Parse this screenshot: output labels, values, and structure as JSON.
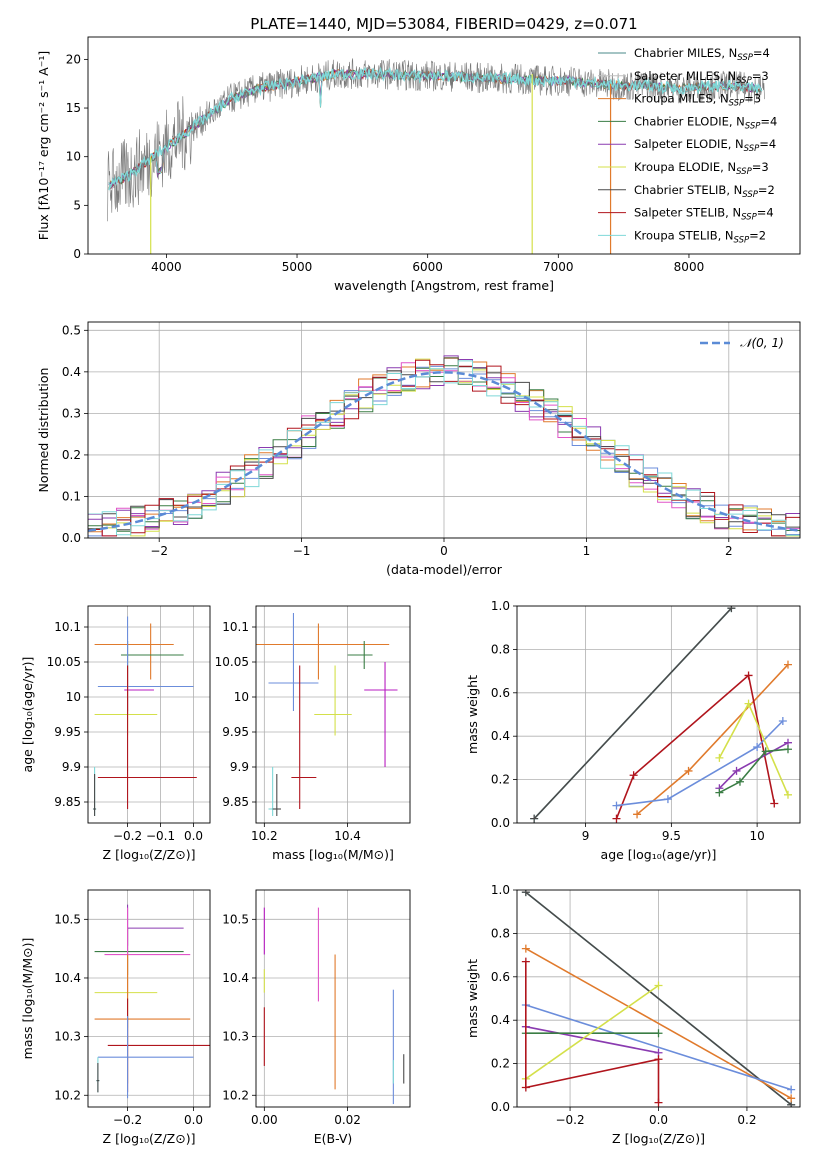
{
  "colors": [
    "#6b8ddb",
    "#8a3bb0",
    "#e07a2c",
    "#3a7d44",
    "#b71cc0",
    "#d4c21a",
    "#4a4a4a",
    "#b0151d",
    "#7fd8d8"
  ],
  "chart_data": [
    {
      "id": "spectrum",
      "type": "line",
      "title": "PLATE=1440, MJD=53084, FIBERID=0429, z=0.071",
      "xlabel": "wavelength [Angstrom, rest frame]",
      "ylabel": "Flux [fλ10⁻¹⁷ erg cm⁻² s⁻¹ A⁻¹]",
      "xlim": [
        3400,
        8850
      ],
      "ylim": [
        0,
        22.3
      ],
      "xticks": [
        4000,
        5000,
        6000,
        7000,
        8000
      ],
      "yticks": [
        0,
        5,
        10,
        15,
        20
      ],
      "legend": [
        "Chabrier MILES, N_SSP=4",
        "Salpeter MILES, N_SSP=3",
        "Kroupa MILES, N_SSP=3",
        "Chabrier ELODIE, N_SSP=4",
        "Salpeter ELODIE, N_SSP=4",
        "Kroupa ELODIE, N_SSP=3",
        "Chabrier STELIB, N_SSP=2",
        "Salpeter STELIB, N_SSP=4",
        "Kroupa STELIB, N_SSP=2"
      ],
      "legend_colors": [
        "#4a8a8a",
        "#c0c0c0",
        "#e07a2c",
        "#3a7d44",
        "#8a3bb0",
        "#d4e04a",
        "#4a4a4a",
        "#b0151d",
        "#7fd8d8"
      ],
      "continuum": {
        "x": [
          3550,
          3700,
          3850,
          4000,
          4150,
          4300,
          4500,
          4700,
          4900,
          5100,
          5300,
          5500,
          5700,
          5900,
          6100,
          6300,
          6500,
          6700,
          6900,
          7100,
          7300,
          7500,
          7700,
          7900,
          8100,
          8300,
          8500,
          8600
        ],
        "y": [
          7,
          8,
          9.5,
          11,
          12.5,
          14,
          16,
          17,
          17.5,
          18,
          18.5,
          18.5,
          18.5,
          18.3,
          18.3,
          18.2,
          18,
          18,
          17.8,
          17.8,
          17.5,
          17.3,
          17.3,
          17,
          17.2,
          17.3,
          17,
          16.8
        ]
      }
    },
    {
      "id": "residuals",
      "type": "histogram",
      "xlabel": "(data-model)/error",
      "ylabel": "Normed distribution",
      "xlim": [
        -2.5,
        2.5
      ],
      "ylim": [
        0,
        0.52
      ],
      "xticks": [
        -2,
        -1,
        0,
        1,
        2
      ],
      "yticks": [
        0,
        0.1,
        0.2,
        0.3,
        0.4,
        0.5
      ],
      "legend": "𝒩(0, 1)",
      "legend_color": "#5b8bd6"
    },
    {
      "id": "age_vs_Z",
      "type": "scatter",
      "xlabel": "Z [log₁₀(Z/Z⊙)]",
      "ylabel": "age  [log₁₀(age/yr)]",
      "xlim": [
        -0.32,
        0.05
      ],
      "ylim": [
        9.82,
        10.13
      ],
      "xticks": [
        -0.2,
        -0.1,
        0.0
      ],
      "yticks": [
        9.85,
        9.9,
        9.95,
        10.0,
        10.05,
        10.1
      ],
      "xticklabels": [
        "−0.2",
        "−0.1",
        "0.0"
      ],
      "points": [
        {
          "x": -0.13,
          "y": 10.075,
          "xerr": [
            0.17,
            0.07
          ],
          "yerr": [
            0.05,
            0.03
          ],
          "c": "#e07a2c"
        },
        {
          "x": -0.2,
          "y": 10.06,
          "xerr": [
            0.02,
            0.17
          ],
          "yerr": [
            0.02,
            0.02
          ],
          "c": "#3a7d44"
        },
        {
          "x": -0.2,
          "y": 10.015,
          "xerr": [
            0.09,
            0.2
          ],
          "yerr": [
            0.04,
            0.1
          ],
          "c": "#6b8ddb"
        },
        {
          "x": -0.2,
          "y": 10.01,
          "xerr": [
            0.01,
            0.08
          ],
          "yerr": [
            0.03,
            0.03
          ],
          "c": "#b71cc0"
        },
        {
          "x": -0.2,
          "y": 9.975,
          "xerr": [
            0.1,
            0.09
          ],
          "yerr": [
            0.03,
            0.07
          ],
          "c": "#d4e04a"
        },
        {
          "x": -0.2,
          "y": 9.885,
          "xerr": [
            0.09,
            0.21
          ],
          "yerr": [
            0.045,
            0.16
          ],
          "c": "#b0151d"
        },
        {
          "x": -0.3,
          "y": 9.84,
          "xerr": [
            0.005,
            0.005
          ],
          "yerr": [
            0.01,
            0.06
          ],
          "c": "#7fd8d8"
        },
        {
          "x": -0.3,
          "y": 9.84,
          "xerr": [
            0.004,
            0.004
          ],
          "yerr": [
            0.01,
            0.05
          ],
          "c": "#4a4a4a"
        }
      ]
    },
    {
      "id": "age_vs_mass",
      "type": "scatter",
      "xlabel": "mass [log₁₀(M/M⊙)]",
      "xlim": [
        10.18,
        10.55
      ],
      "ylim": [
        9.82,
        10.13
      ],
      "xticks": [
        10.2,
        10.4
      ],
      "yticks": [
        9.85,
        9.9,
        9.95,
        10.0,
        10.05,
        10.1
      ],
      "points": [
        {
          "x": 10.33,
          "y": 10.075,
          "xerr": [
            0.15,
            0.17
          ],
          "yerr": [
            0.05,
            0.03
          ],
          "c": "#e07a2c"
        },
        {
          "x": 10.44,
          "y": 10.06,
          "xerr": [
            0.04,
            0.02
          ],
          "yerr": [
            0.02,
            0.02
          ],
          "c": "#3a7d44"
        },
        {
          "x": 10.27,
          "y": 10.02,
          "xerr": [
            0.06,
            0.06
          ],
          "yerr": [
            0.04,
            0.1
          ],
          "c": "#6b8ddb"
        },
        {
          "x": 10.49,
          "y": 10.01,
          "xerr": [
            0.05,
            0.03
          ],
          "yerr": [
            0.11,
            0.04
          ],
          "c": "#b71cc0"
        },
        {
          "x": 10.37,
          "y": 9.975,
          "xerr": [
            0.05,
            0.04
          ],
          "yerr": [
            0.03,
            0.07
          ],
          "c": "#d4e04a"
        },
        {
          "x": 10.285,
          "y": 9.885,
          "xerr": [
            0.02,
            0.04
          ],
          "yerr": [
            0.045,
            0.16
          ],
          "c": "#b0151d"
        },
        {
          "x": 10.22,
          "y": 9.84,
          "xerr": [
            0.01,
            0.01
          ],
          "yerr": [
            0.01,
            0.06
          ],
          "c": "#7fd8d8"
        },
        {
          "x": 10.23,
          "y": 9.84,
          "xerr": [
            0.01,
            0.01
          ],
          "yerr": [
            0.01,
            0.05
          ],
          "c": "#4a4a4a"
        }
      ]
    },
    {
      "id": "weight_vs_age",
      "type": "line",
      "xlabel": "age  [log₁₀(age/yr)]",
      "ylabel": "mass weight",
      "xlim": [
        8.6,
        10.25
      ],
      "ylim": [
        0,
        1.0
      ],
      "xticks": [
        9.0,
        9.5,
        10.0
      ],
      "yticks": [
        0.0,
        0.2,
        0.4,
        0.6,
        0.8,
        1.0
      ],
      "series": [
        {
          "c": "#7fd8d8",
          "pts": [
            [
              8.7,
              0.02
            ],
            [
              9.85,
              0.99
            ]
          ]
        },
        {
          "c": "#4a4a4a",
          "pts": [
            [
              8.7,
              0.02
            ],
            [
              9.85,
              0.99
            ]
          ]
        },
        {
          "c": "#e07a2c",
          "pts": [
            [
              9.3,
              0.04
            ],
            [
              9.6,
              0.24
            ],
            [
              10.18,
              0.73
            ]
          ]
        },
        {
          "c": "#b0151d",
          "pts": [
            [
              9.18,
              0.02
            ],
            [
              9.28,
              0.22
            ],
            [
              9.95,
              0.68
            ],
            [
              10.1,
              0.09
            ]
          ]
        },
        {
          "c": "#6b8ddb",
          "pts": [
            [
              9.18,
              0.08
            ],
            [
              9.48,
              0.11
            ],
            [
              10.0,
              0.35
            ],
            [
              10.15,
              0.47
            ]
          ]
        },
        {
          "c": "#d4e04a",
          "pts": [
            [
              9.78,
              0.3
            ],
            [
              9.95,
              0.55
            ],
            [
              10.18,
              0.13
            ]
          ]
        },
        {
          "c": "#8a3bb0",
          "pts": [
            [
              9.78,
              0.16
            ],
            [
              9.88,
              0.24
            ],
            [
              10.18,
              0.37
            ]
          ]
        },
        {
          "c": "#3a7d44",
          "pts": [
            [
              9.78,
              0.14
            ],
            [
              9.9,
              0.19
            ],
            [
              10.05,
              0.33
            ],
            [
              10.18,
              0.34
            ]
          ]
        }
      ]
    },
    {
      "id": "mass_vs_Z",
      "type": "scatter",
      "xlabel": "Z [log₁₀(Z/Z⊙)]",
      "ylabel": "mass [log₁₀(M/M⊙)]",
      "xlim": [
        -0.32,
        0.05
      ],
      "ylim": [
        10.18,
        10.55
      ],
      "xticks": [
        -0.2,
        0.0
      ],
      "yticks": [
        10.2,
        10.3,
        10.4,
        10.5
      ],
      "xticklabels": [
        "−0.2",
        "0.0"
      ],
      "points": [
        {
          "x": -0.2,
          "y": 10.485,
          "xerr": [
            0.0,
            0.17
          ],
          "yerr": [
            0.03,
            0.04
          ],
          "c": "#8a3bb0"
        },
        {
          "x": -0.2,
          "y": 10.445,
          "xerr": [
            0.1,
            0.17
          ],
          "yerr": [
            0.04,
            0.04
          ],
          "c": "#3a7d44"
        },
        {
          "x": -0.2,
          "y": 10.44,
          "xerr": [
            0.07,
            0.19
          ],
          "yerr": [
            0.07,
            0.08
          ],
          "c": "#e055c8"
        },
        {
          "x": -0.2,
          "y": 10.375,
          "xerr": [
            0.1,
            0.09
          ],
          "yerr": [
            0.06,
            0.06
          ],
          "c": "#d4e04a"
        },
        {
          "x": -0.2,
          "y": 10.33,
          "xerr": [
            0.1,
            0.19
          ],
          "yerr": [
            0.11,
            0.11
          ],
          "c": "#e07a2c"
        },
        {
          "x": -0.2,
          "y": 10.285,
          "xerr": [
            0.06,
            0.27
          ],
          "yerr": [
            0.08,
            0.08
          ],
          "c": "#b0151d"
        },
        {
          "x": -0.2,
          "y": 10.265,
          "xerr": [
            0.09,
            0.2
          ],
          "yerr": [
            0.07,
            0.07
          ],
          "c": "#6b8ddb"
        },
        {
          "x": -0.29,
          "y": 10.225,
          "xerr": [
            0.005,
            0.005
          ],
          "yerr": [
            0.02,
            0.04
          ],
          "c": "#7fd8d8"
        },
        {
          "x": -0.29,
          "y": 10.225,
          "xerr": [
            0.004,
            0.004
          ],
          "yerr": [
            0.02,
            0.03
          ],
          "c": "#4a4a4a"
        }
      ]
    },
    {
      "id": "mass_vs_EBV",
      "type": "scatter",
      "xlabel": "E(B-V)",
      "xlim": [
        -0.002,
        0.035
      ],
      "ylim": [
        10.18,
        10.55
      ],
      "xticks": [
        0.0,
        0.02
      ],
      "yticks": [
        10.2,
        10.3,
        10.4,
        10.5
      ],
      "xticklabels": [
        "0.00",
        "0.02"
      ],
      "points": [
        {
          "x": 0.0,
          "y": 10.48,
          "yerr": [
            0.04,
            0.04
          ],
          "c": "#b71cc0"
        },
        {
          "x": 0.0,
          "y": 10.395,
          "yerr": [
            0.02,
            0.02
          ],
          "c": "#d4e04a"
        },
        {
          "x": 0.0,
          "y": 10.3,
          "yerr": [
            0.05,
            0.05
          ],
          "c": "#b0151d"
        },
        {
          "x": 0.013,
          "y": 10.44,
          "yerr": [
            0.08,
            0.08
          ],
          "c": "#e055c8"
        },
        {
          "x": 0.017,
          "y": 10.33,
          "yerr": [
            0.12,
            0.11
          ],
          "c": "#e07a2c"
        },
        {
          "x": 0.031,
          "y": 10.305,
          "yerr": [
            0.12,
            0.075
          ],
          "c": "#6b8ddb"
        },
        {
          "x": 0.031,
          "y": 10.24,
          "yerr": [
            0.02,
            0.02
          ],
          "c": "#7fd8d8"
        },
        {
          "x": 0.0335,
          "y": 10.245,
          "yerr": [
            0.025,
            0.025
          ],
          "c": "#4a4a4a"
        }
      ]
    },
    {
      "id": "weight_vs_Z",
      "type": "line",
      "xlabel": "Z [log₁₀(Z/Z⊙)]",
      "ylabel": "mass weight",
      "xlim": [
        -0.32,
        0.32
      ],
      "ylim": [
        0,
        1.0
      ],
      "xticks": [
        -0.2,
        0.0,
        0.2
      ],
      "yticks": [
        0.0,
        0.2,
        0.4,
        0.6,
        0.8,
        1.0
      ],
      "xticklabels": [
        "−0.2",
        "0.0",
        "0.2"
      ],
      "series": [
        {
          "c": "#7fd8d8",
          "pts": [
            [
              -0.3,
              0.99
            ],
            [
              0.3,
              0.01
            ]
          ]
        },
        {
          "c": "#4a4a4a",
          "pts": [
            [
              -0.3,
              0.99
            ],
            [
              0.3,
              0.01
            ]
          ]
        },
        {
          "c": "#e07a2c",
          "pts": [
            [
              -0.3,
              0.73
            ],
            [
              0.3,
              0.04
            ]
          ]
        },
        {
          "c": "#6b8ddb",
          "pts": [
            [
              -0.3,
              0.47
            ],
            [
              0.3,
              0.08
            ]
          ]
        },
        {
          "c": "#8a3bb0",
          "pts": [
            [
              -0.3,
              0.37
            ],
            [
              0.0,
              0.25
            ]
          ]
        },
        {
          "c": "#3a7d44",
          "pts": [
            [
              -0.3,
              0.34
            ],
            [
              0.0,
              0.34
            ]
          ]
        },
        {
          "c": "#d4e04a",
          "pts": [
            [
              -0.3,
              0.13
            ],
            [
              0.0,
              0.56
            ]
          ]
        },
        {
          "c": "#b0151d",
          "pts": [
            [
              -0.3,
              0.67
            ],
            [
              -0.3,
              0.09
            ],
            [
              0.0,
              0.22
            ],
            [
              0.0,
              0.02
            ]
          ]
        }
      ]
    }
  ]
}
